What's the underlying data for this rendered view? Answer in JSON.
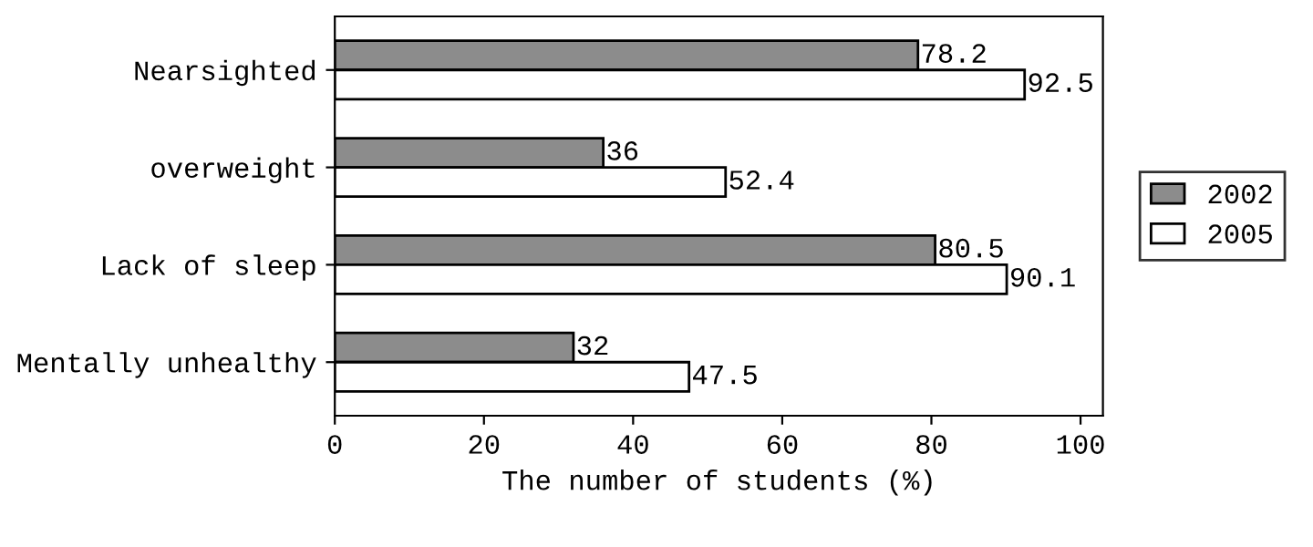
{
  "chart_data": {
    "type": "bar",
    "orientation": "horizontal",
    "xlabel": "The number of students (%)",
    "categories": [
      "Nearsighted",
      "overweight",
      "Lack of sleep",
      "Mentally unhealthy"
    ],
    "series": [
      {
        "name": "2002",
        "color": "#8c8c8c",
        "values": [
          78.2,
          36,
          80.5,
          32
        ]
      },
      {
        "name": "2005",
        "color": "#ffffff",
        "values": [
          92.5,
          52.4,
          90.1,
          47.5
        ]
      }
    ],
    "xlim": [
      0,
      103
    ],
    "xticks": [
      0,
      20,
      40,
      60,
      80,
      100
    ],
    "data_labels": true,
    "legend": "right",
    "grid": false
  }
}
